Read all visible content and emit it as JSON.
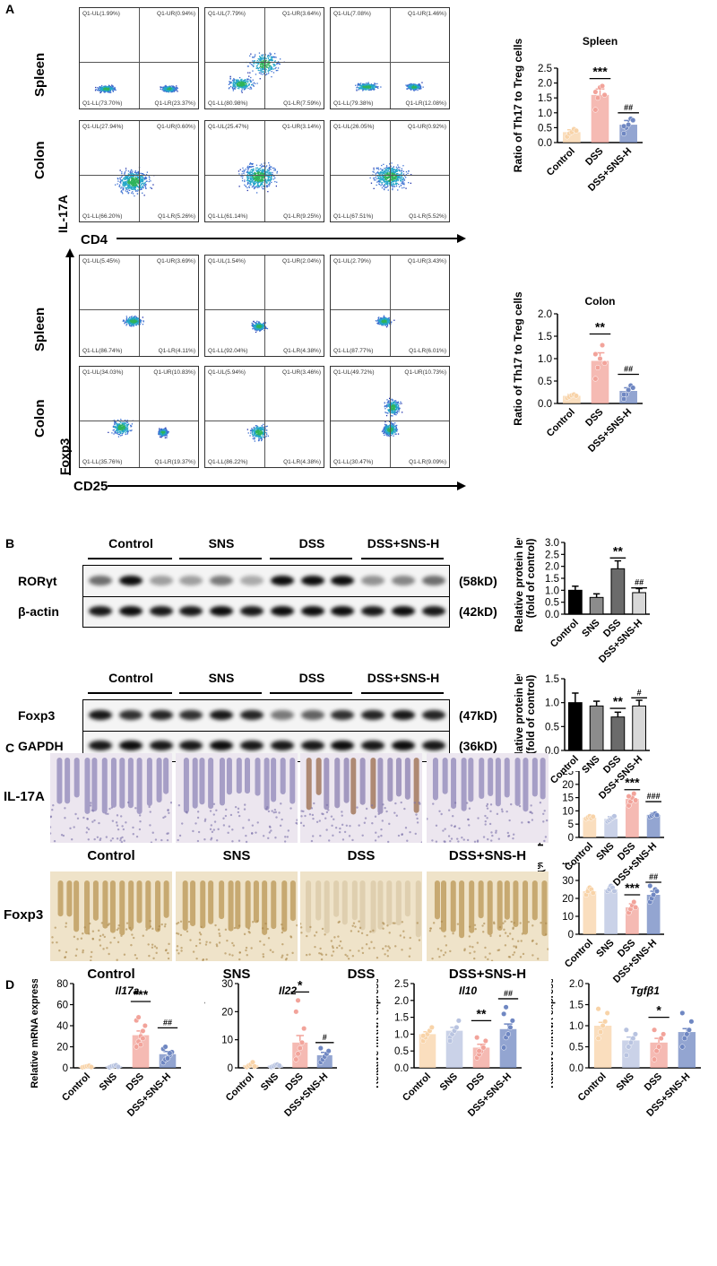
{
  "panel_letters": {
    "a": "A",
    "b": "B",
    "c": "C",
    "d": "D"
  },
  "flow": {
    "row_labels": {
      "spleen1": "Spleen",
      "colon1": "Colon",
      "spleen2": "Spleen",
      "colon2": "Colon"
    },
    "y_labels": {
      "il17a": "IL-17A",
      "foxp3": "Foxp3"
    },
    "x_labels": {
      "cd4": "CD4",
      "cd25": "CD25"
    },
    "plots": [
      {
        "ul": "Q1-UL(1.99%)",
        "ur": "Q1-UR(0.94%)",
        "ll": "Q1-LL(73.70%)",
        "lr": "Q1-LR(23.37%)"
      },
      {
        "ul": "Q1-UL(7.79%)",
        "ur": "Q1-UR(3.64%)",
        "ll": "Q1-LL(80.98%)",
        "lr": "Q1-LR(7.59%)"
      },
      {
        "ul": "Q1-UL(7.08%)",
        "ur": "Q1-UR(1.46%)",
        "ll": "Q1-LL(79.38%)",
        "lr": "Q1-LR(12.08%)"
      },
      {
        "ul": "Q1-UL(27.94%)",
        "ur": "Q1-UR(0.60%)",
        "ll": "Q1-LL(66.20%)",
        "lr": "Q1-LR(5.26%)"
      },
      {
        "ul": "Q1-UL(25.47%)",
        "ur": "Q1-UR(3.14%)",
        "ll": "Q1-LL(61.14%)",
        "lr": "Q1-LR(9.25%)"
      },
      {
        "ul": "Q1-UL(26.05%)",
        "ur": "Q1-UR(0.92%)",
        "ll": "Q1-LL(67.51%)",
        "lr": "Q1-LR(5.52%)"
      },
      {
        "ul": "Q1-UL(5.45%)",
        "ur": "Q1-UR(3.69%)",
        "ll": "Q1-LL(86.74%)",
        "lr": "Q1-LR(4.11%)"
      },
      {
        "ul": "Q1-UL(1.54%)",
        "ur": "Q1-UR(2.04%)",
        "ll": "Q1-LL(92.04%)",
        "lr": "Q1-LR(4.38%)"
      },
      {
        "ul": "Q1-UL(2.79%)",
        "ur": "Q1-UR(3.43%)",
        "ll": "Q1-LL(87.77%)",
        "lr": "Q1-LR(6.01%)"
      },
      {
        "ul": "Q1-UL(34.03%)",
        "ur": "Q1-UR(10.83%)",
        "ll": "Q1-LL(35.76%)",
        "lr": "Q1-LR(19.37%)"
      },
      {
        "ul": "Q1-UL(5.94%)",
        "ur": "Q1-UR(3.46%)",
        "ll": "Q1-LL(86.22%)",
        "lr": "Q1-LR(4.38%)"
      },
      {
        "ul": "Q1-UL(49.72%)",
        "ur": "Q1-UR(10.73%)",
        "ll": "Q1-LL(30.47%)",
        "lr": "Q1-LR(9.09%)"
      }
    ]
  },
  "blots": {
    "groups": [
      "Control",
      "SNS",
      "DSS",
      "DSS+SNS-H"
    ],
    "rows1": [
      {
        "label": "RORγt",
        "size": "(58kD)"
      },
      {
        "label": "β-actin",
        "size": "(42kD)"
      }
    ],
    "rows2": [
      {
        "label": "Foxp3",
        "size": "(47kD)"
      },
      {
        "label": "GAPDH",
        "size": "(36kD)"
      }
    ]
  },
  "histology": {
    "row_labels": [
      "IL-17A",
      "Foxp3"
    ],
    "groups": [
      "Control",
      "SNS",
      "DSS",
      "DSS+SNS-H"
    ]
  },
  "chart_data": [
    {
      "type": "bar",
      "title": "Spleen",
      "ylabel": "Ratio of Th17 to Treg cells",
      "categories": [
        "Control",
        "DSS",
        "DSS+SNS-H"
      ],
      "values": [
        0.35,
        1.6,
        0.6
      ],
      "errors": [
        0.08,
        0.2,
        0.14
      ],
      "ylim": [
        0,
        2.5
      ],
      "yticks": [
        0.0,
        0.5,
        1.0,
        1.5,
        2.0,
        2.5
      ],
      "colors": [
        "#f8d3a8",
        "#f2a39a",
        "#6f87c2"
      ],
      "points": [
        [
          0.2,
          0.3,
          0.35,
          0.45,
          0.4
        ],
        [
          1.1,
          1.5,
          1.85,
          1.9,
          1.6,
          1.7
        ],
        [
          0.3,
          0.5,
          0.6,
          0.8,
          0.75,
          0.55
        ]
      ],
      "annotations": [
        {
          "bar": 1,
          "text": "***",
          "y": 2.15
        },
        {
          "bar": 2,
          "text": "##",
          "y": 1.0
        }
      ]
    },
    {
      "type": "bar",
      "title": "Colon",
      "ylabel": "Ratio of Th17 to Treg cells",
      "categories": [
        "Control",
        "DSS",
        "DSS+SNS-H"
      ],
      "values": [
        0.17,
        0.95,
        0.28
      ],
      "errors": [
        0.03,
        0.18,
        0.07
      ],
      "ylim": [
        0,
        2.0
      ],
      "yticks": [
        0.0,
        0.5,
        1.0,
        1.5,
        2.0
      ],
      "colors": [
        "#f8d3a8",
        "#f2a39a",
        "#6f87c2"
      ],
      "points": [
        [
          0.12,
          0.15,
          0.18,
          0.2,
          0.17
        ],
        [
          0.55,
          0.8,
          1.0,
          1.3,
          0.9,
          1.1
        ],
        [
          0.1,
          0.2,
          0.3,
          0.4,
          0.35,
          0.2
        ]
      ],
      "annotations": [
        {
          "bar": 1,
          "text": "**",
          "y": 1.55
        },
        {
          "bar": 2,
          "text": "##",
          "y": 0.65
        }
      ]
    },
    {
      "type": "bar",
      "ylabel": "Relative protein level (fold of control)",
      "categories": [
        "Control",
        "SNS",
        "DSS",
        "DSS+SNS-H"
      ],
      "values": [
        1.0,
        0.7,
        1.9,
        0.9
      ],
      "errors": [
        0.17,
        0.15,
        0.33,
        0.17
      ],
      "ylim": [
        0,
        3.0
      ],
      "yticks": [
        0.0,
        0.5,
        1.0,
        1.5,
        2.0,
        2.5,
        3.0
      ],
      "colors": [
        "#000000",
        "#8c8c8c",
        "#6b6b6b",
        "#d8d8d8"
      ],
      "annotations": [
        {
          "bar": 2,
          "text": "**",
          "y": 2.35
        },
        {
          "bar": 3,
          "text": "##",
          "y": 1.1
        }
      ]
    },
    {
      "type": "bar",
      "ylabel": "Relative protein level (fold of control)",
      "categories": [
        "Control",
        "SNS",
        "DSS",
        "DSS+SNS-H"
      ],
      "values": [
        1.0,
        0.93,
        0.7,
        0.93
      ],
      "errors": [
        0.2,
        0.1,
        0.1,
        0.12
      ],
      "ylim": [
        0,
        1.5
      ],
      "yticks": [
        0.0,
        0.5,
        1.0,
        1.5
      ],
      "colors": [
        "#000000",
        "#8c8c8c",
        "#6b6b6b",
        "#d8d8d8"
      ],
      "annotations": [
        {
          "bar": 2,
          "text": "**",
          "y": 0.88
        },
        {
          "bar": 3,
          "text": "#",
          "y": 1.1
        }
      ]
    },
    {
      "type": "bar",
      "ylabel": "Positive Area(%)",
      "categories": [
        "Control",
        "SNS",
        "DSS",
        "DSS+SNS-H"
      ],
      "values": [
        7.5,
        7.0,
        14.5,
        8.5
      ],
      "errors": [
        0.6,
        0.8,
        1.3,
        0.6
      ],
      "ylim": [
        0,
        25
      ],
      "yticks": [
        0,
        5,
        10,
        15,
        20,
        25
      ],
      "colors": [
        "#f8d3a8",
        "#b8c3e0",
        "#f2a39a",
        "#6f87c2"
      ],
      "points": [
        [
          7,
          7.5,
          8,
          7.2,
          7.8
        ],
        [
          6,
          6.5,
          7,
          7.5,
          8
        ],
        [
          12,
          13.5,
          15,
          16.5,
          14,
          15.5
        ],
        [
          7.8,
          8.2,
          8.7,
          9,
          8.4
        ]
      ],
      "annotations": [
        {
          "bar": 2,
          "text": "***",
          "y": 18
        },
        {
          "bar": 3,
          "text": "###",
          "y": 13.5
        }
      ]
    },
    {
      "type": "bar",
      "ylabel": "Positive Area(%)",
      "categories": [
        "Control",
        "SNS",
        "DSS",
        "DSS+SNS-H"
      ],
      "values": [
        24,
        25,
        15,
        22
      ],
      "errors": [
        1.5,
        1.5,
        2,
        2
      ],
      "ylim": [
        0,
        40
      ],
      "yticks": [
        0,
        10,
        20,
        30,
        40
      ],
      "colors": [
        "#f8d3a8",
        "#b8c3e0",
        "#f2a39a",
        "#6f87c2"
      ],
      "points": [
        [
          22,
          24,
          26,
          25,
          23
        ],
        [
          24,
          25,
          27,
          26,
          24
        ],
        [
          12,
          14,
          16,
          18,
          15
        ],
        [
          18,
          20,
          22,
          25,
          24,
          27
        ]
      ],
      "annotations": [
        {
          "bar": 2,
          "text": "***",
          "y": 22
        },
        {
          "bar": 3,
          "text": "##",
          "y": 29
        }
      ]
    },
    {
      "type": "bar",
      "title": "Il17a",
      "ylabel": "Relative mRNA expression",
      "categories": [
        "Control",
        "SNS",
        "DSS",
        "DSS+SNS-H"
      ],
      "values": [
        1,
        1.5,
        31,
        13
      ],
      "errors": [
        0.5,
        0.6,
        4,
        2.5
      ],
      "ylim": [
        0,
        80
      ],
      "yticks": [
        0,
        20,
        40,
        60,
        80
      ],
      "colors": [
        "#f8d3a8",
        "#b8c3e0",
        "#f2a39a",
        "#6f87c2"
      ],
      "points": [
        [
          0.5,
          1,
          1.5,
          2,
          0.8
        ],
        [
          0.5,
          1.5,
          2,
          2.5,
          1
        ],
        [
          20,
          25,
          30,
          35,
          40,
          45,
          48,
          22,
          28
        ],
        [
          5,
          8,
          10,
          12,
          15,
          18,
          20,
          9,
          14
        ]
      ],
      "annotations": [
        {
          "bar": 2,
          "text": "***",
          "y": 63
        },
        {
          "bar": 3,
          "text": "##",
          "y": 38
        }
      ]
    },
    {
      "type": "bar",
      "title": "Il22",
      "ylabel": "Relative mRNA expression",
      "categories": [
        "Control",
        "SNS",
        "DSS",
        "DSS+SNS-H"
      ],
      "values": [
        1,
        0.8,
        9,
        4.5
      ],
      "errors": [
        0.4,
        0.3,
        2.5,
        1
      ],
      "ylim": [
        0,
        30
      ],
      "yticks": [
        0,
        10,
        20,
        30
      ],
      "colors": [
        "#f8d3a8",
        "#b8c3e0",
        "#f2a39a",
        "#6f87c2"
      ],
      "points": [
        [
          0.3,
          0.8,
          1.2,
          2,
          0.5
        ],
        [
          0.3,
          0.6,
          1,
          1.2,
          0.8
        ],
        [
          3,
          5,
          7,
          9,
          14,
          20,
          24
        ],
        [
          2,
          3,
          4,
          5,
          6,
          7
        ]
      ],
      "annotations": [
        {
          "bar": 2,
          "text": "*",
          "y": 27
        },
        {
          "bar": 3,
          "text": "#",
          "y": 9
        }
      ]
    },
    {
      "type": "bar",
      "title": "Il10",
      "ylabel": "Relative mRNA expression",
      "categories": [
        "Control",
        "SNS",
        "DSS",
        "DSS+SNS-H"
      ],
      "values": [
        1.0,
        1.1,
        0.6,
        1.15
      ],
      "errors": [
        0.07,
        0.1,
        0.1,
        0.15
      ],
      "ylim": [
        0,
        2.5
      ],
      "yticks": [
        0.0,
        0.5,
        1.0,
        1.5,
        2.0,
        2.5
      ],
      "colors": [
        "#f8d3a8",
        "#b8c3e0",
        "#f2a39a",
        "#6f87c2"
      ],
      "points": [
        [
          0.8,
          0.9,
          1.0,
          1.1,
          1.2,
          0.95
        ],
        [
          0.9,
          1.0,
          1.1,
          1.2,
          1.4,
          0.8
        ],
        [
          0.3,
          0.4,
          0.5,
          0.6,
          0.8,
          0.9,
          0.5
        ],
        [
          0.6,
          0.9,
          1.0,
          1.2,
          1.4,
          1.6,
          1.8
        ]
      ],
      "annotations": [
        {
          "bar": 2,
          "text": "**",
          "y": 1.4
        },
        {
          "bar": 3,
          "text": "##",
          "y": 2.05
        }
      ]
    },
    {
      "type": "bar",
      "title": "Tgfβ1",
      "ylabel": "Relative mRNA expression",
      "categories": [
        "Control",
        "SNS",
        "DSS",
        "DSS+SNS-H"
      ],
      "values": [
        1.0,
        0.65,
        0.6,
        0.85
      ],
      "errors": [
        0.08,
        0.08,
        0.1,
        0.08
      ],
      "ylim": [
        0,
        2.0
      ],
      "yticks": [
        0.0,
        0.5,
        1.0,
        1.5,
        2.0
      ],
      "colors": [
        "#f8d3a8",
        "#b8c3e0",
        "#f2a39a",
        "#6f87c2"
      ],
      "points": [
        [
          0.7,
          0.85,
          1.0,
          1.1,
          1.3,
          1.4
        ],
        [
          0.3,
          0.5,
          0.6,
          0.7,
          0.8,
          0.9
        ],
        [
          0.2,
          0.4,
          0.5,
          0.7,
          0.8,
          0.9
        ],
        [
          0.5,
          0.7,
          0.8,
          0.9,
          1.1,
          1.3
        ]
      ],
      "annotations": [
        {
          "bar": 2,
          "text": "*",
          "y": 1.2
        }
      ]
    }
  ]
}
